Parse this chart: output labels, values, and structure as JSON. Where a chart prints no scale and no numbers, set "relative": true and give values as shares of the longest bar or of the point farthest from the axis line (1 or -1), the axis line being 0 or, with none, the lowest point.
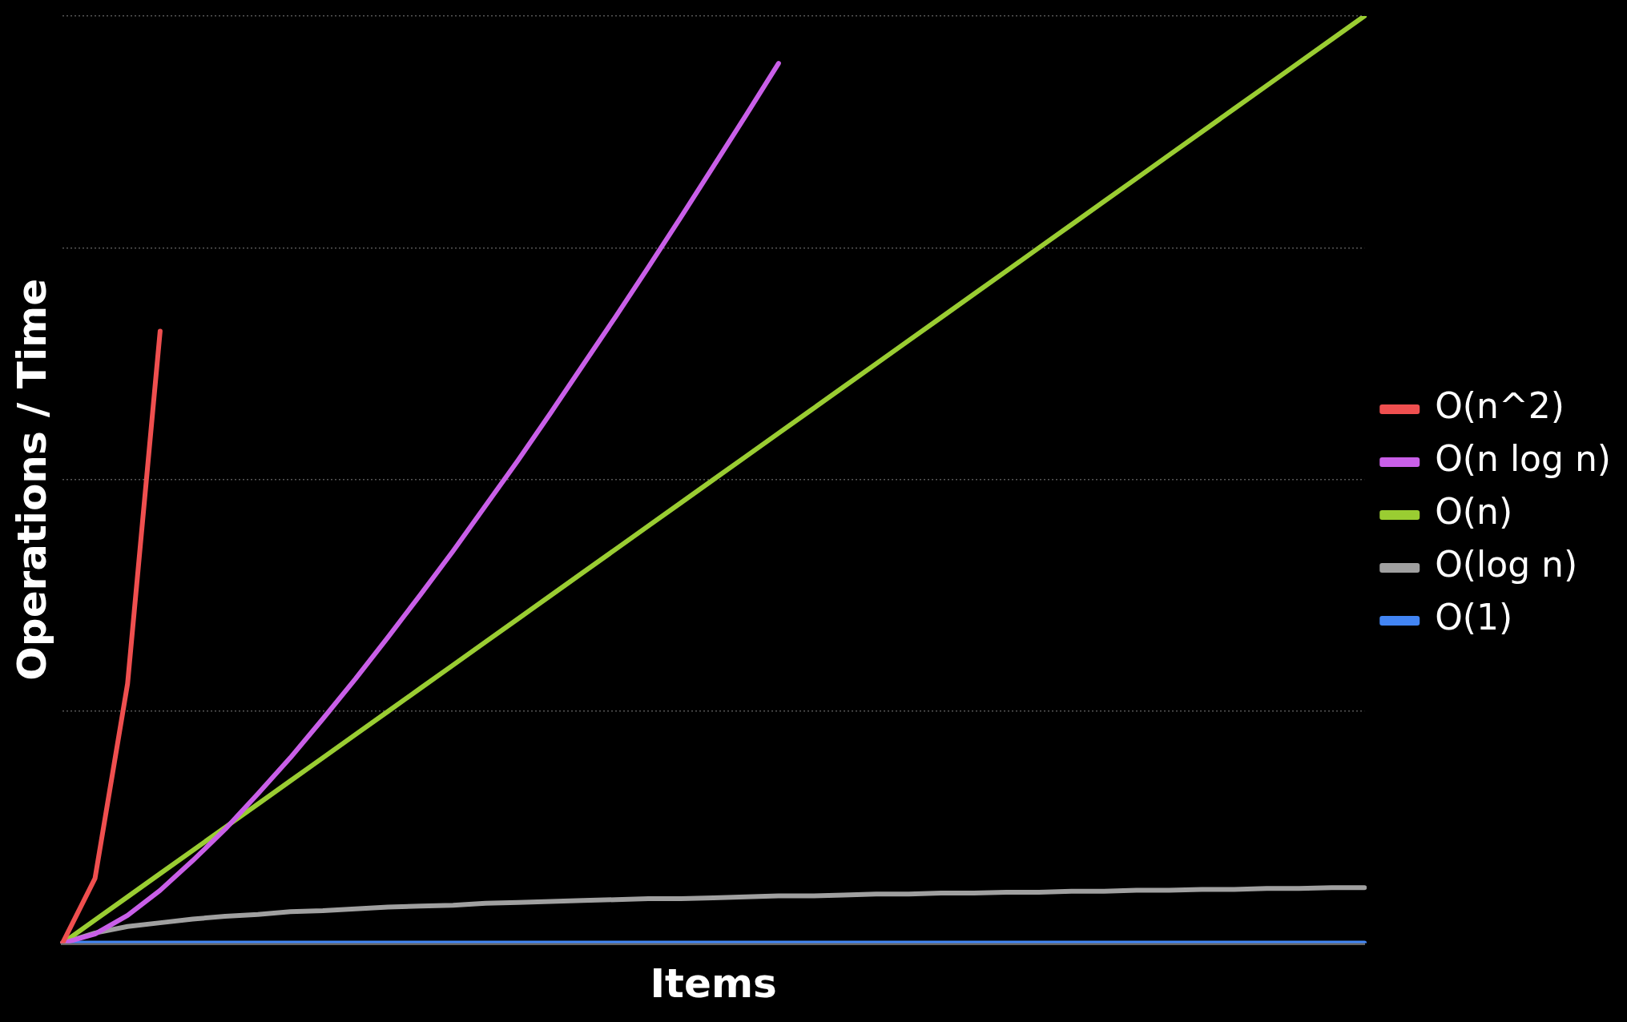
{
  "chart_data": {
    "type": "line",
    "xlabel": "Items",
    "ylabel": "Operations / Time",
    "relative": true,
    "grid": "y",
    "legend": "right",
    "marker": "none",
    "line_style": "solid",
    "categories": [
      null,
      null,
      null,
      null,
      null,
      null,
      null,
      null,
      null,
      null,
      null,
      null,
      null,
      null,
      null,
      null,
      null,
      null,
      null,
      null,
      null,
      null,
      null,
      null,
      null,
      null,
      null,
      null,
      null,
      null,
      null,
      null,
      null,
      null,
      null,
      null,
      null,
      null,
      null,
      null,
      null
    ],
    "series": [
      {
        "name": "O(n^2)",
        "color": "#ef4f4f",
        "values": [
          0,
          0.07,
          0.28,
          0.66,
          null,
          null,
          null,
          null,
          null,
          null,
          null,
          null,
          null,
          null,
          null,
          null,
          null,
          null,
          null,
          null,
          null,
          null,
          null,
          null,
          null,
          null,
          null,
          null,
          null,
          null,
          null,
          null,
          null,
          null,
          null,
          null,
          null,
          null,
          null,
          null,
          null
        ]
      },
      {
        "name": "O(n log n)",
        "color": "#c95fe8",
        "values": [
          0,
          0.01,
          0.03,
          0.057,
          0.089,
          0.123,
          0.161,
          0.2,
          0.242,
          0.285,
          0.33,
          0.376,
          0.423,
          0.472,
          0.521,
          0.572,
          0.624,
          0.676,
          0.729,
          0.783,
          0.838,
          0.893,
          0.949,
          null,
          null,
          null,
          null,
          null,
          null,
          null,
          null,
          null,
          null,
          null,
          null,
          null,
          null,
          null,
          null,
          null,
          null
        ]
      },
      {
        "name": "O(n)",
        "color": "#9acd32",
        "values": [
          0,
          0.025,
          0.05,
          0.075,
          0.1,
          0.125,
          0.15,
          0.175,
          0.2,
          0.225,
          0.25,
          0.275,
          0.3,
          0.325,
          0.35,
          0.375,
          0.4,
          0.425,
          0.45,
          0.475,
          0.5,
          0.525,
          0.55,
          0.575,
          0.6,
          0.625,
          0.65,
          0.675,
          0.7,
          0.725,
          0.75,
          0.775,
          0.8,
          0.825,
          0.85,
          0.875,
          0.9,
          0.925,
          0.95,
          0.975,
          1
        ]
      },
      {
        "name": "O(log n)",
        "color": "#a0a0a0",
        "values": [
          0,
          0.011,
          0.018,
          0.022,
          0.026,
          0.029,
          0.031,
          0.034,
          0.035,
          0.037,
          0.039,
          0.04,
          0.041,
          0.043,
          0.044,
          0.045,
          0.046,
          0.047,
          0.048,
          0.048,
          0.049,
          0.05,
          0.051,
          0.051,
          0.052,
          0.053,
          0.053,
          0.054,
          0.054,
          0.055,
          0.055,
          0.056,
          0.056,
          0.057,
          0.057,
          0.058,
          0.058,
          0.059,
          0.059,
          0.06,
          0.06
        ]
      },
      {
        "name": "O(1)",
        "color": "#4285f4",
        "values": [
          0,
          0,
          0,
          0,
          0,
          0,
          0,
          0,
          0,
          0,
          0,
          0,
          0,
          0,
          0,
          0,
          0,
          0,
          0,
          0,
          0,
          0,
          0,
          0,
          0,
          0,
          0,
          0,
          0,
          0,
          0,
          0,
          0,
          0,
          0,
          0,
          0,
          0,
          0,
          0,
          0
        ]
      }
    ]
  }
}
